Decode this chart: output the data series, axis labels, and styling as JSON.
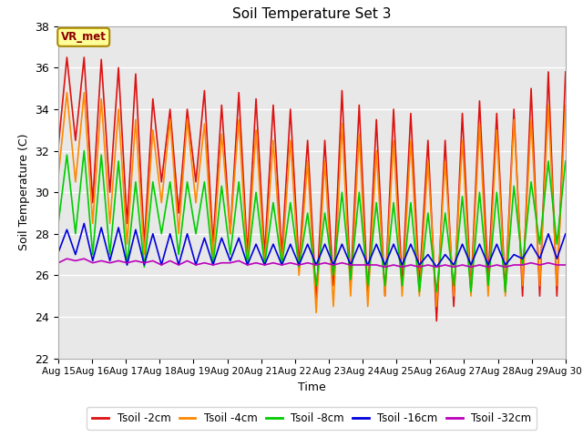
{
  "title": "Soil Temperature Set 3",
  "xlabel": "Time",
  "ylabel": "Soil Temperature (C)",
  "ylim": [
    22,
    38
  ],
  "yticks": [
    22,
    24,
    26,
    28,
    30,
    32,
    34,
    36,
    38
  ],
  "background_color": "#e8e8e8",
  "annotation_text": "VR_met",
  "annotation_bg": "#ffff99",
  "annotation_fg": "#8b0000",
  "series_colors": [
    "#dd1111",
    "#ff8800",
    "#00cc00",
    "#0000dd",
    "#bb00bb"
  ],
  "series_labels": [
    "Tsoil -2cm",
    "Tsoil -4cm",
    "Tsoil -8cm",
    "Tsoil -16cm",
    "Tsoil -32cm"
  ],
  "x_tick_labels": [
    "Aug 15",
    "Aug 16",
    "Aug 17",
    "Aug 18",
    "Aug 19",
    "Aug 20",
    "Aug 21",
    "Aug 22",
    "Aug 23",
    "Aug 24",
    "Aug 25",
    "Aug 26",
    "Aug 27",
    "Aug 28",
    "Aug 29",
    "Aug 30"
  ],
  "tsoil_2cm": [
    32.2,
    36.5,
    32.5,
    36.5,
    29.5,
    36.4,
    30.0,
    36.0,
    28.5,
    35.7,
    27.5,
    34.5,
    30.5,
    34.0,
    29.0,
    34.0,
    30.5,
    34.9,
    27.5,
    34.2,
    28.0,
    34.8,
    27.0,
    34.5,
    27.0,
    34.2,
    27.0,
    34.0,
    26.5,
    32.5,
    24.8,
    32.5,
    25.5,
    34.9,
    25.5,
    34.2,
    25.0,
    33.5,
    25.0,
    34.0,
    25.5,
    33.8,
    25.5,
    32.5,
    23.8,
    32.5,
    24.5,
    33.8,
    25.2,
    34.4,
    25.8,
    33.8,
    25.2,
    34.0,
    25.0,
    35.0,
    25.0,
    35.8,
    25.0,
    35.8
  ],
  "tsoil_4cm": [
    30.8,
    34.8,
    30.5,
    34.8,
    28.5,
    34.5,
    28.5,
    34.0,
    27.5,
    33.5,
    27.0,
    33.0,
    29.5,
    33.5,
    28.0,
    33.5,
    29.5,
    33.3,
    27.0,
    32.8,
    28.0,
    33.5,
    26.5,
    33.0,
    26.5,
    32.5,
    26.5,
    32.5,
    26.0,
    31.5,
    24.2,
    31.5,
    24.5,
    33.3,
    25.0,
    32.8,
    24.5,
    32.0,
    25.0,
    32.5,
    25.0,
    32.5,
    25.0,
    31.5,
    24.5,
    31.5,
    25.0,
    32.5,
    25.0,
    33.3,
    25.0,
    33.0,
    25.0,
    33.5,
    25.5,
    33.5,
    25.5,
    34.2,
    25.5,
    34.2
  ],
  "tsoil_8cm": [
    28.5,
    31.8,
    28.0,
    32.0,
    27.0,
    31.8,
    27.0,
    31.5,
    26.5,
    30.5,
    26.4,
    30.5,
    28.0,
    30.5,
    27.0,
    30.5,
    28.0,
    30.5,
    26.5,
    30.3,
    27.0,
    30.5,
    26.5,
    30.0,
    26.5,
    29.5,
    26.5,
    29.5,
    26.4,
    29.0,
    25.5,
    29.0,
    26.0,
    30.0,
    25.8,
    30.0,
    25.5,
    29.5,
    25.5,
    29.5,
    25.5,
    29.5,
    25.2,
    29.0,
    25.2,
    29.0,
    25.5,
    29.8,
    25.2,
    30.0,
    25.5,
    30.0,
    25.2,
    30.3,
    26.5,
    30.5,
    27.5,
    31.5,
    27.5,
    31.5
  ],
  "tsoil_16cm": [
    27.1,
    28.2,
    27.0,
    28.5,
    26.7,
    28.3,
    26.7,
    28.3,
    26.5,
    28.2,
    26.5,
    28.0,
    26.5,
    28.0,
    26.5,
    28.0,
    26.5,
    27.8,
    26.5,
    27.8,
    26.7,
    27.8,
    26.5,
    27.5,
    26.5,
    27.5,
    26.5,
    27.5,
    26.5,
    27.5,
    26.5,
    27.5,
    26.5,
    27.5,
    26.5,
    27.5,
    26.5,
    27.5,
    26.5,
    27.5,
    26.5,
    27.5,
    26.5,
    27.0,
    26.4,
    27.0,
    26.5,
    27.5,
    26.5,
    27.5,
    26.5,
    27.5,
    26.5,
    27.0,
    26.8,
    27.5,
    26.8,
    28.0,
    26.8,
    28.0
  ],
  "tsoil_32cm": [
    26.6,
    26.8,
    26.7,
    26.8,
    26.6,
    26.7,
    26.6,
    26.7,
    26.6,
    26.7,
    26.6,
    26.7,
    26.5,
    26.7,
    26.5,
    26.7,
    26.5,
    26.6,
    26.5,
    26.6,
    26.6,
    26.7,
    26.5,
    26.6,
    26.5,
    26.6,
    26.5,
    26.6,
    26.5,
    26.6,
    26.5,
    26.6,
    26.5,
    26.6,
    26.5,
    26.5,
    26.5,
    26.5,
    26.4,
    26.5,
    26.4,
    26.5,
    26.4,
    26.5,
    26.4,
    26.5,
    26.4,
    26.5,
    26.4,
    26.5,
    26.4,
    26.5,
    26.4,
    26.5,
    26.5,
    26.6,
    26.5,
    26.6,
    26.5,
    26.5
  ]
}
